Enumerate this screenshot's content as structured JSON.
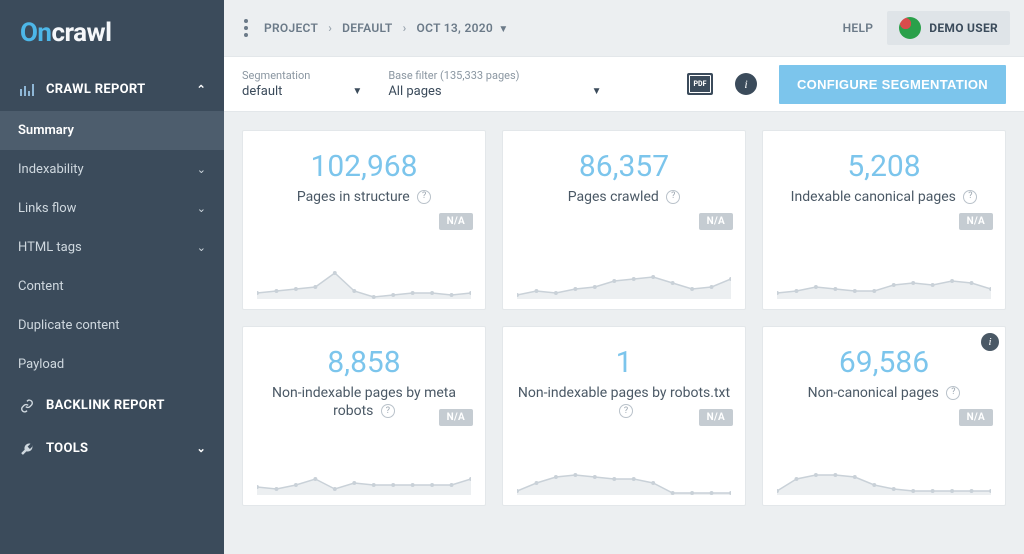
{
  "logo": {
    "part1": "On",
    "part2": "crawl"
  },
  "sidebar": {
    "sections": [
      {
        "label": "CRAWL REPORT",
        "expanded": true,
        "icon": "bars"
      },
      {
        "label": "BACKLINK REPORT",
        "expanded": false,
        "icon": "link"
      },
      {
        "label": "TOOLS",
        "expanded": false,
        "icon": "wrench"
      }
    ],
    "crawl_items": [
      {
        "label": "Summary",
        "active": true,
        "chev": false
      },
      {
        "label": "Indexability",
        "active": false,
        "chev": true
      },
      {
        "label": "Links flow",
        "active": false,
        "chev": true
      },
      {
        "label": "HTML tags",
        "active": false,
        "chev": true
      },
      {
        "label": "Content",
        "active": false,
        "chev": false
      },
      {
        "label": "Duplicate content",
        "active": false,
        "chev": false
      },
      {
        "label": "Payload",
        "active": false,
        "chev": false
      }
    ]
  },
  "breadcrumb": {
    "project": "PROJECT",
    "default": "DEFAULT",
    "date": "OCT 13, 2020"
  },
  "topbar": {
    "help": "HELP",
    "user": "DEMO USER"
  },
  "filters": {
    "seg_label": "Segmentation",
    "seg_value": "default",
    "base_label": "Base filter (135,333 pages)",
    "base_value": "All pages",
    "config_btn": "CONFIGURE SEGMENTATION"
  },
  "cards": [
    {
      "value": "102,968",
      "label": "Pages in structure",
      "badge": "N/A",
      "spark": "0,40 20,38 40,36 60,34 80,20 100,38 120,44 140,42 160,40 180,40 200,42 220,40"
    },
    {
      "value": "86,357",
      "label": "Pages crawled",
      "badge": "N/A",
      "spark": "0,42 20,38 40,40 60,36 80,34 100,28 120,26 140,24 160,30 180,36 200,34 220,26"
    },
    {
      "value": "5,208",
      "label": "Indexable canonical pages",
      "badge": "N/A",
      "spark": "0,40 20,38 40,34 60,36 80,38 100,38 120,32 140,30 160,32 180,28 200,30 220,36"
    },
    {
      "value": "8,858",
      "label": "Non-indexable pages by meta robots",
      "badge": "N/A",
      "spark": "0,38 20,40 40,36 60,30 80,40 100,34 120,36 140,36 160,36 180,36 200,36 220,30"
    },
    {
      "value": "1",
      "label": "Non-indexable pages by robots.txt",
      "badge": "N/A",
      "spark": "0,42 20,34 40,28 60,26 80,28 100,30 120,30 140,34 160,44 180,44 200,44 220,44"
    },
    {
      "value": "69,586",
      "label": "Non-canonical pages",
      "badge": "N/A",
      "info": true,
      "spark": "0,42 20,30 40,26 60,26 80,28 100,36 120,40 140,42 160,42 180,42 200,42 220,42"
    }
  ],
  "style": {
    "spark_stroke": "#c9d1d8",
    "spark_fill": "rgba(201,209,216,0.35)"
  }
}
